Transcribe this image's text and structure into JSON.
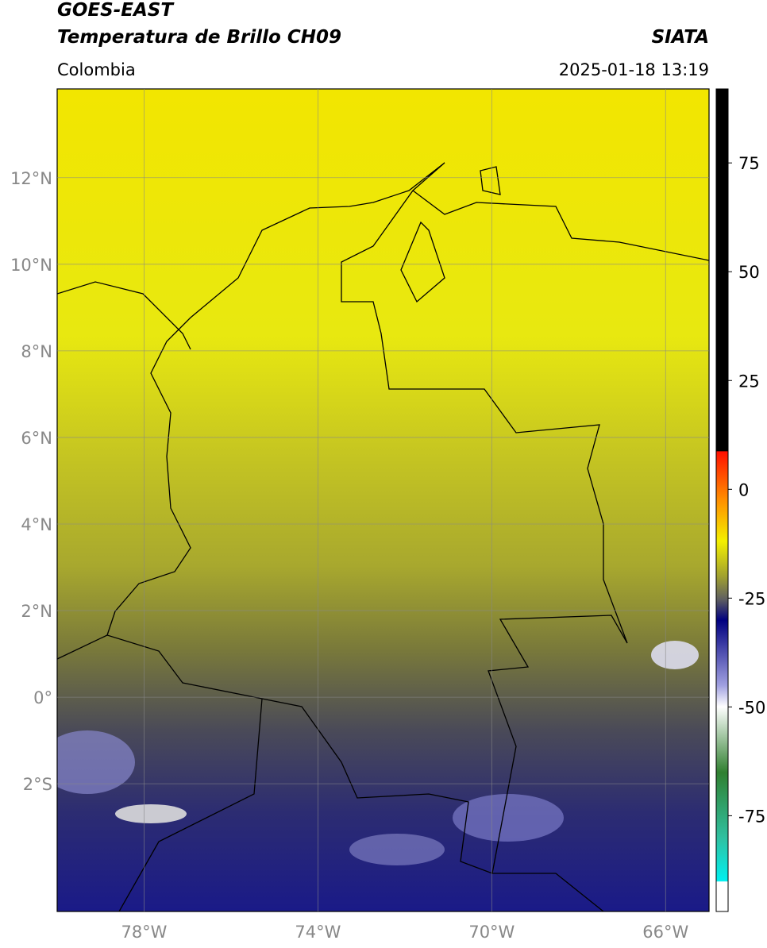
{
  "header": {
    "title": "GOES-EAST",
    "subtitle": "Temperatura de Brillo CH09",
    "region": "Colombia",
    "source": "SIATA",
    "timestamp": "2025-01-18 13:19"
  },
  "map": {
    "xlim": [
      -80,
      -65
    ],
    "ylim": [
      -4.95,
      14.05
    ],
    "xticks": [
      {
        "value": -78,
        "label": "78°W"
      },
      {
        "value": -74,
        "label": "74°W"
      },
      {
        "value": -70,
        "label": "70°W"
      },
      {
        "value": -66,
        "label": "66°W"
      }
    ],
    "yticks": [
      {
        "value": 12,
        "label": "12°N"
      },
      {
        "value": 10,
        "label": "10°N"
      },
      {
        "value": 8,
        "label": "8°N"
      },
      {
        "value": 6,
        "label": "6°N"
      },
      {
        "value": 4,
        "label": "4°N"
      },
      {
        "value": 2,
        "label": "2°N"
      },
      {
        "value": 0,
        "label": "0°"
      },
      {
        "value": -2,
        "label": "2°S"
      }
    ],
    "grid": true
  },
  "colorbar": {
    "lim": [
      -97,
      92
    ],
    "ticks": [
      75,
      50,
      25,
      0,
      -25,
      -50,
      -75
    ]
  }
}
